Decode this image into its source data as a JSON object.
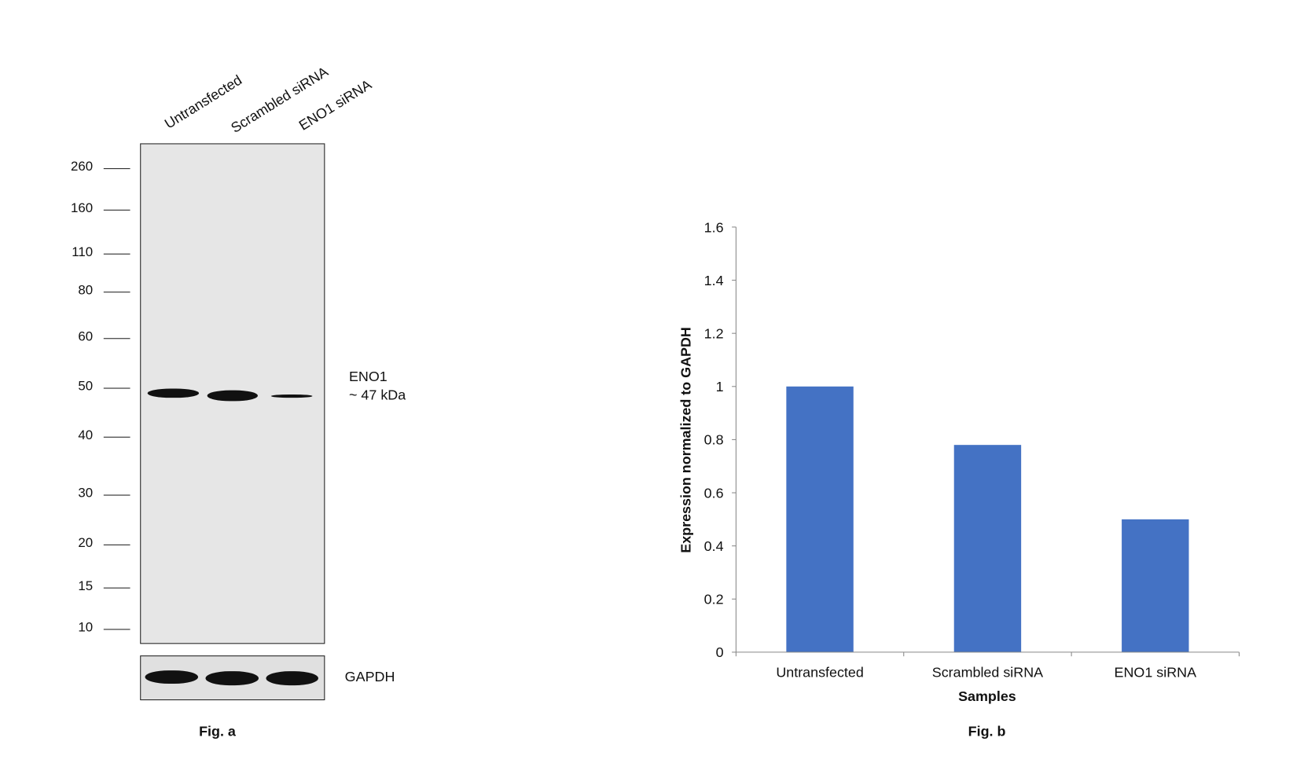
{
  "fig_a": {
    "caption": "Fig. a",
    "lanes": [
      "Untransfected",
      "Scrambled siRNA",
      "ENO1 siRNA"
    ],
    "markers": [
      "260",
      "160",
      "110",
      "80",
      "60",
      "50",
      "40",
      "30",
      "20",
      "15",
      "10"
    ],
    "target_label": "ENO1",
    "target_size": "~ 47 kDa",
    "loading_control": "GAPDH"
  },
  "fig_b": {
    "caption": "Fig. b"
  },
  "chart_data": {
    "type": "bar",
    "title": "",
    "categories": [
      "Untransfected",
      "Scrambled siRNA",
      "ENO1 siRNA"
    ],
    "values": [
      1.0,
      0.78,
      0.5
    ],
    "xlabel": "Samples",
    "ylabel": "Expression normalized to GAPDH",
    "ylim": [
      0,
      1.6
    ],
    "yticks": [
      "0",
      "0.2",
      "0.4",
      "0.6",
      "0.8",
      "1",
      "1.2",
      "1.4",
      "1.6"
    ],
    "grid": false,
    "legend": "none",
    "bar_color": "#4472c4"
  }
}
